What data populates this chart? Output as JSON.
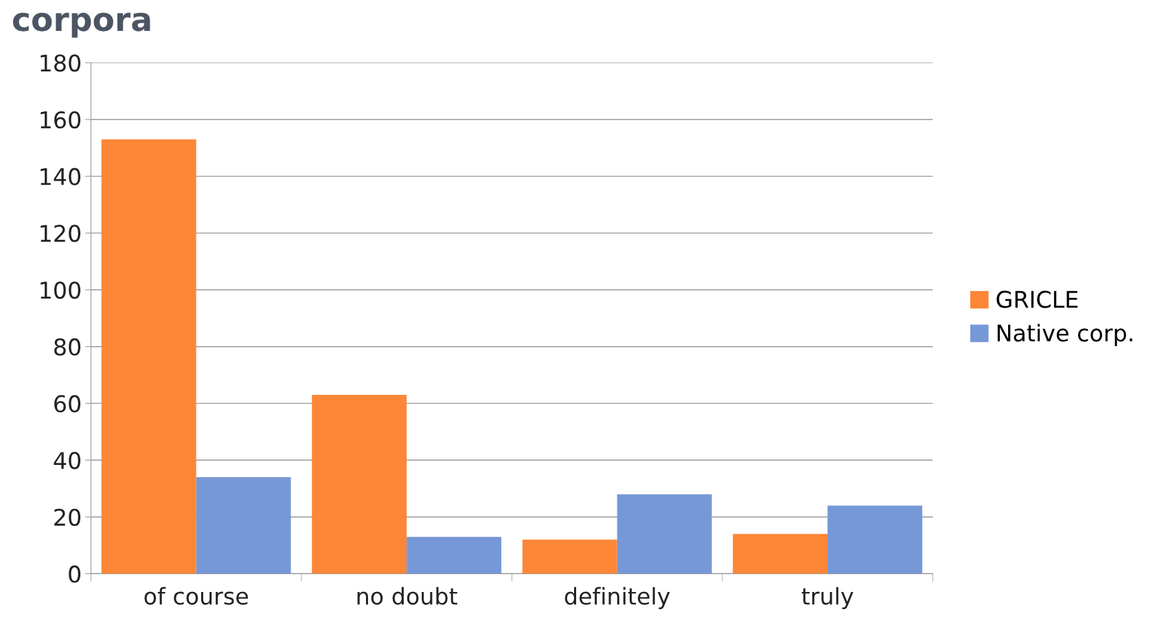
{
  "chart_data": {
    "type": "bar",
    "title": "corpora",
    "categories": [
      "of course",
      "no doubt",
      "definitely",
      "truly"
    ],
    "series": [
      {
        "name": "GRICLE",
        "color": "#fd8637",
        "values": [
          153,
          63,
          12,
          14
        ]
      },
      {
        "name": "Native corp.",
        "color": "#7698d6",
        "values": [
          34,
          13,
          28,
          24
        ]
      }
    ],
    "ylim": [
      0,
      180
    ],
    "yticks": [
      0,
      20,
      40,
      60,
      80,
      100,
      120,
      140,
      160,
      180
    ],
    "grid": "y",
    "legend": "right"
  }
}
